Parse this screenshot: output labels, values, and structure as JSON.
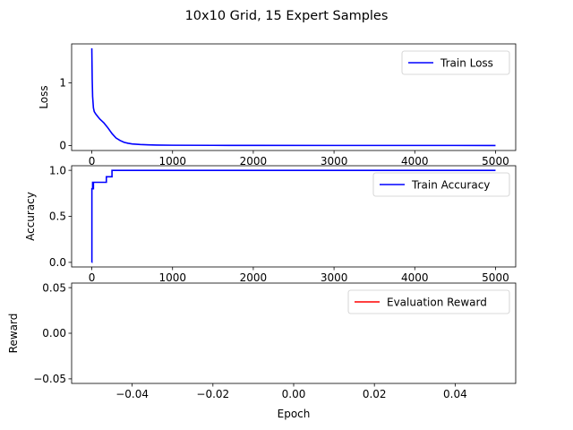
{
  "figure": {
    "title": "10x10 Grid, 15 Expert Samples"
  },
  "chart_data": [
    {
      "type": "line",
      "ylabel": "Loss",
      "xlabel": "",
      "xlim": [
        -250,
        5250
      ],
      "ylim": [
        -0.08,
        1.62
      ],
      "xticks": [
        0,
        1000,
        2000,
        3000,
        4000,
        5000
      ],
      "xtick_labels": [
        "0",
        "1000",
        "2000",
        "3000",
        "4000",
        "5000"
      ],
      "yticks": [
        0,
        1
      ],
      "ytick_labels": [
        "0",
        "1"
      ],
      "grid": false,
      "legend": "upper right",
      "series": [
        {
          "name": "Train Loss",
          "color": "#0000ff",
          "x": [
            0,
            5,
            10,
            20,
            30,
            50,
            75,
            100,
            150,
            200,
            250,
            300,
            350,
            400,
            450,
            500,
            600,
            700,
            800,
            1000,
            1500,
            2000,
            3000,
            4000,
            5000
          ],
          "y": [
            1.55,
            1.05,
            0.78,
            0.6,
            0.54,
            0.5,
            0.46,
            0.42,
            0.36,
            0.28,
            0.19,
            0.12,
            0.08,
            0.05,
            0.035,
            0.025,
            0.015,
            0.01,
            0.007,
            0.004,
            0.002,
            0.001,
            0.0005,
            0.0003,
            0.0002
          ]
        }
      ]
    },
    {
      "type": "line",
      "ylabel": "Accuracy",
      "xlabel": "",
      "xlim": [
        -250,
        5250
      ],
      "ylim": [
        -0.05,
        1.05
      ],
      "xticks": [
        0,
        1000,
        2000,
        3000,
        4000,
        5000
      ],
      "xtick_labels": [
        "0",
        "1000",
        "2000",
        "3000",
        "4000",
        "5000"
      ],
      "yticks": [
        0,
        0.5,
        1
      ],
      "ytick_labels": [
        "0.0",
        "0.5",
        "1.0"
      ],
      "grid": false,
      "legend": "upper right",
      "series": [
        {
          "name": "Train Accuracy",
          "color": "#0000ff",
          "x": [
            0,
            1,
            1,
            10,
            10,
            15,
            15,
            20,
            20,
            180,
            180,
            250,
            250,
            5000
          ],
          "y": [
            0,
            0,
            0.8,
            0.8,
            0.87,
            0.87,
            0.8,
            0.8,
            0.87,
            0.87,
            0.93,
            0.93,
            1.0,
            1.0
          ]
        }
      ]
    },
    {
      "type": "line",
      "ylabel": "Reward",
      "xlabel": "Epoch",
      "xlim": [
        -0.055,
        0.055
      ],
      "ylim": [
        -0.055,
        0.055
      ],
      "xticks": [
        -0.04,
        -0.02,
        0,
        0.02,
        0.04
      ],
      "xtick_labels": [
        "−0.04",
        "−0.02",
        "0.00",
        "0.02",
        "0.04"
      ],
      "yticks": [
        -0.05,
        0,
        0.05
      ],
      "ytick_labels": [
        "−0.05",
        "0.00",
        "0.05"
      ],
      "grid": false,
      "legend": "upper right",
      "series": [
        {
          "name": "Evaluation Reward",
          "color": "#ff0000",
          "x": [],
          "y": []
        }
      ]
    }
  ]
}
